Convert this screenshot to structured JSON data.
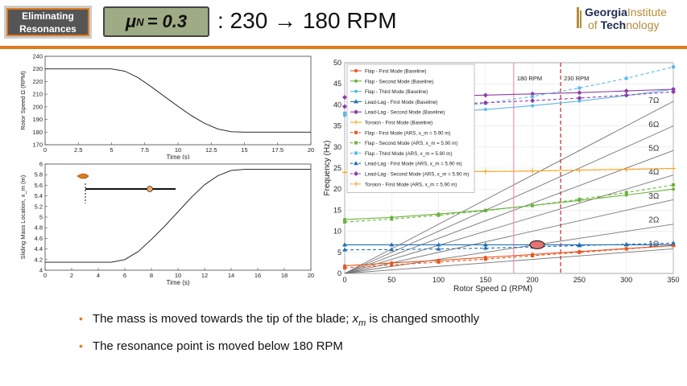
{
  "header": {
    "tag_line1": "Eliminating",
    "tag_line2": "Resonances",
    "mu_label": "μ",
    "mu_sub": "N",
    "mu_value": "= 0.3",
    "title": ": 230 → 180 RPM",
    "logo_line1a": "Georgia",
    "logo_line1b": "Institute",
    "logo_line2a": "of ",
    "logo_line2b": "Tech",
    "logo_line2c": "nology",
    "accent_color": "#e07a1c"
  },
  "bullets": {
    "b1_pre": "The mass is moved towards the tip of the blade; ",
    "b1_var": "x",
    "b1_sub": "m",
    "b1_post": " is changed smoothly",
    "b2": "The resonance point is moved below 180 RPM"
  },
  "chart_data": [
    {
      "type": "line",
      "ylabel": "Rotor Speed Ω (RPM)",
      "xlabel": "Time (s)",
      "xlim": [
        0,
        20
      ],
      "ylim": [
        170,
        240
      ],
      "xticks": [
        0,
        2.5,
        5,
        7.5,
        10,
        12.5,
        15,
        17.5,
        20
      ],
      "yticks": [
        170,
        180,
        190,
        200,
        210,
        220,
        230,
        240
      ],
      "series": [
        {
          "x": [
            0,
            5,
            6,
            7,
            8,
            9,
            10,
            11,
            12,
            13,
            14,
            15,
            20
          ],
          "y": [
            230,
            230,
            228.2,
            223.1,
            215.8,
            208.1,
            200.4,
            193.1,
            186.9,
            182.5,
            180.3,
            180,
            180
          ]
        }
      ]
    },
    {
      "type": "line",
      "ylabel": "Sliding Mass Location, x_m (m)",
      "xlabel": "Time (s)",
      "xlim": [
        0,
        20
      ],
      "ylim": [
        4,
        6
      ],
      "xticks": [
        0,
        2,
        4,
        6,
        8,
        10,
        12,
        14,
        16,
        18,
        20
      ],
      "yticks": [
        4,
        4.2,
        4.4,
        4.6,
        4.8,
        5,
        5.2,
        5.4,
        5.6,
        5.8,
        6
      ],
      "series": [
        {
          "x": [
            0,
            5,
            6,
            7,
            8,
            9,
            10,
            11,
            12,
            13,
            14,
            15,
            20
          ],
          "y": [
            4.15,
            4.15,
            4.2,
            4.35,
            4.58,
            4.83,
            5.1,
            5.37,
            5.61,
            5.78,
            5.88,
            5.9,
            5.9
          ]
        }
      ]
    },
    {
      "type": "line",
      "xlabel": "Rotor Speed Ω (RPM)",
      "ylabel": "Frequency (Hz)",
      "xlim": [
        0,
        350
      ],
      "ylim": [
        0,
        50
      ],
      "xticks": [
        0,
        50,
        100,
        150,
        200,
        250,
        300,
        350
      ],
      "yticks": [
        0,
        5,
        10,
        15,
        20,
        25,
        30,
        35,
        40,
        45,
        50
      ],
      "vlines": [
        {
          "x": 180,
          "label": "180 RPM",
          "color": "#f48fb1"
        },
        {
          "x": 230,
          "label": "230 RPM",
          "color": "#c62828"
        }
      ],
      "harmonics": [
        "1Ω",
        "2Ω",
        "3Ω",
        "4Ω",
        "5Ω",
        "6Ω",
        "7Ω"
      ],
      "series": [
        {
          "name": "Flap - First Mode (Baseline)",
          "color": "#e8551e",
          "dash": false,
          "marker": "circle",
          "x": [
            0,
            50,
            100,
            150,
            200,
            250,
            300,
            350
          ],
          "y": [
            1.8,
            2.5,
            3.1,
            3.8,
            4.5,
            5.2,
            5.9,
            6.6
          ]
        },
        {
          "name": "Flap - Second Mode (Baseline)",
          "color": "#6bb33b",
          "dash": false,
          "marker": "circle",
          "x": [
            0,
            50,
            100,
            150,
            200,
            250,
            300,
            350
          ],
          "y": [
            12.8,
            13.3,
            14.1,
            15.0,
            16.1,
            17.3,
            18.6,
            20.0
          ]
        },
        {
          "name": "Flap - Third Mode (Baseline)",
          "color": "#5bb8e8",
          "dash": false,
          "marker": "circle",
          "x": [
            0,
            50,
            100,
            150,
            200,
            250,
            300,
            350
          ],
          "y": [
            37.5,
            37.7,
            38.2,
            38.9,
            39.8,
            40.9,
            42.2,
            43.7
          ]
        },
        {
          "name": "Lead-Lag - First Mode (Baseline)",
          "color": "#1f6fb5",
          "dash": false,
          "marker": "triangle",
          "x": [
            0,
            50,
            100,
            150,
            200,
            250,
            300,
            350
          ],
          "y": [
            6.8,
            6.8,
            6.8,
            6.8,
            6.8,
            6.8,
            6.8,
            6.8
          ]
        },
        {
          "name": "Lead-Lag - Second Mode (Baseline)",
          "color": "#8e3ca6",
          "dash": false,
          "marker": "diamond",
          "x": [
            0,
            50,
            100,
            150,
            200,
            250,
            300,
            350
          ],
          "y": [
            41.8,
            41.9,
            42.1,
            42.3,
            42.6,
            42.9,
            43.3,
            43.7
          ]
        },
        {
          "name": "Torsion - First Mode (Baseline)",
          "color": "#f5a623",
          "dash": false,
          "marker": "plus",
          "x": [
            0,
            50,
            100,
            150,
            200,
            250,
            300,
            350
          ],
          "y": [
            24.0,
            24.0,
            24.1,
            24.2,
            24.3,
            24.5,
            24.7,
            24.9
          ]
        },
        {
          "name": "Flap - First Mode (ARS, x_m = 5.90 m)",
          "color": "#e8551e",
          "dash": true,
          "marker": "square",
          "x": [
            0,
            50,
            100,
            150,
            200,
            250,
            300,
            350
          ],
          "y": [
            1.3,
            2.0,
            2.7,
            3.4,
            4.2,
            5.0,
            5.8,
            6.6
          ]
        },
        {
          "name": "Flap - Second Mode (ARS, x_m = 5.90 m)",
          "color": "#6bb33b",
          "dash": true,
          "marker": "square",
          "x": [
            0,
            50,
            100,
            150,
            200,
            250,
            300,
            350
          ],
          "y": [
            12.2,
            12.9,
            13.8,
            14.9,
            16.1,
            17.6,
            19.2,
            21.0
          ]
        },
        {
          "name": "Flap - Third Mode (ARS, x_m = 5.90 m)",
          "color": "#5bb8e8",
          "dash": true,
          "marker": "square",
          "x": [
            0,
            50,
            100,
            150,
            200,
            250,
            300,
            350
          ],
          "y": [
            38.0,
            38.4,
            39.2,
            40.4,
            42.0,
            44.0,
            46.3,
            49.0
          ]
        },
        {
          "name": "Lead-Lag - First Mode (ARS, x_m = 5.90 m)",
          "color": "#1f6fb5",
          "dash": true,
          "marker": "triangle",
          "x": [
            0,
            50,
            100,
            150,
            200,
            250,
            300,
            350
          ],
          "y": [
            5.6,
            5.65,
            5.8,
            6.0,
            6.3,
            6.6,
            6.9,
            7.2
          ]
        },
        {
          "name": "Lead-Lag - Second Mode (ARS, x_m = 5.90 m)",
          "color": "#8e3ca6",
          "dash": true,
          "marker": "diamond",
          "x": [
            0,
            50,
            100,
            150,
            200,
            250,
            300,
            350
          ],
          "y": [
            39.6,
            39.8,
            40.1,
            40.5,
            41.0,
            41.6,
            42.3,
            43.1
          ]
        },
        {
          "name": "Torsion - First Mode (ARS, x_m = 5.90 m)",
          "color": "#f5a623",
          "dash": true,
          "marker": "plus",
          "x": [
            0,
            50,
            100,
            150,
            200,
            250,
            300,
            350
          ],
          "y": [
            24.0,
            24.0,
            24.1,
            24.2,
            24.3,
            24.5,
            24.7,
            24.9
          ]
        }
      ],
      "annotation": {
        "x": 205,
        "y": 6.8,
        "note": "resonance crossing",
        "color": "#e57373"
      }
    }
  ]
}
